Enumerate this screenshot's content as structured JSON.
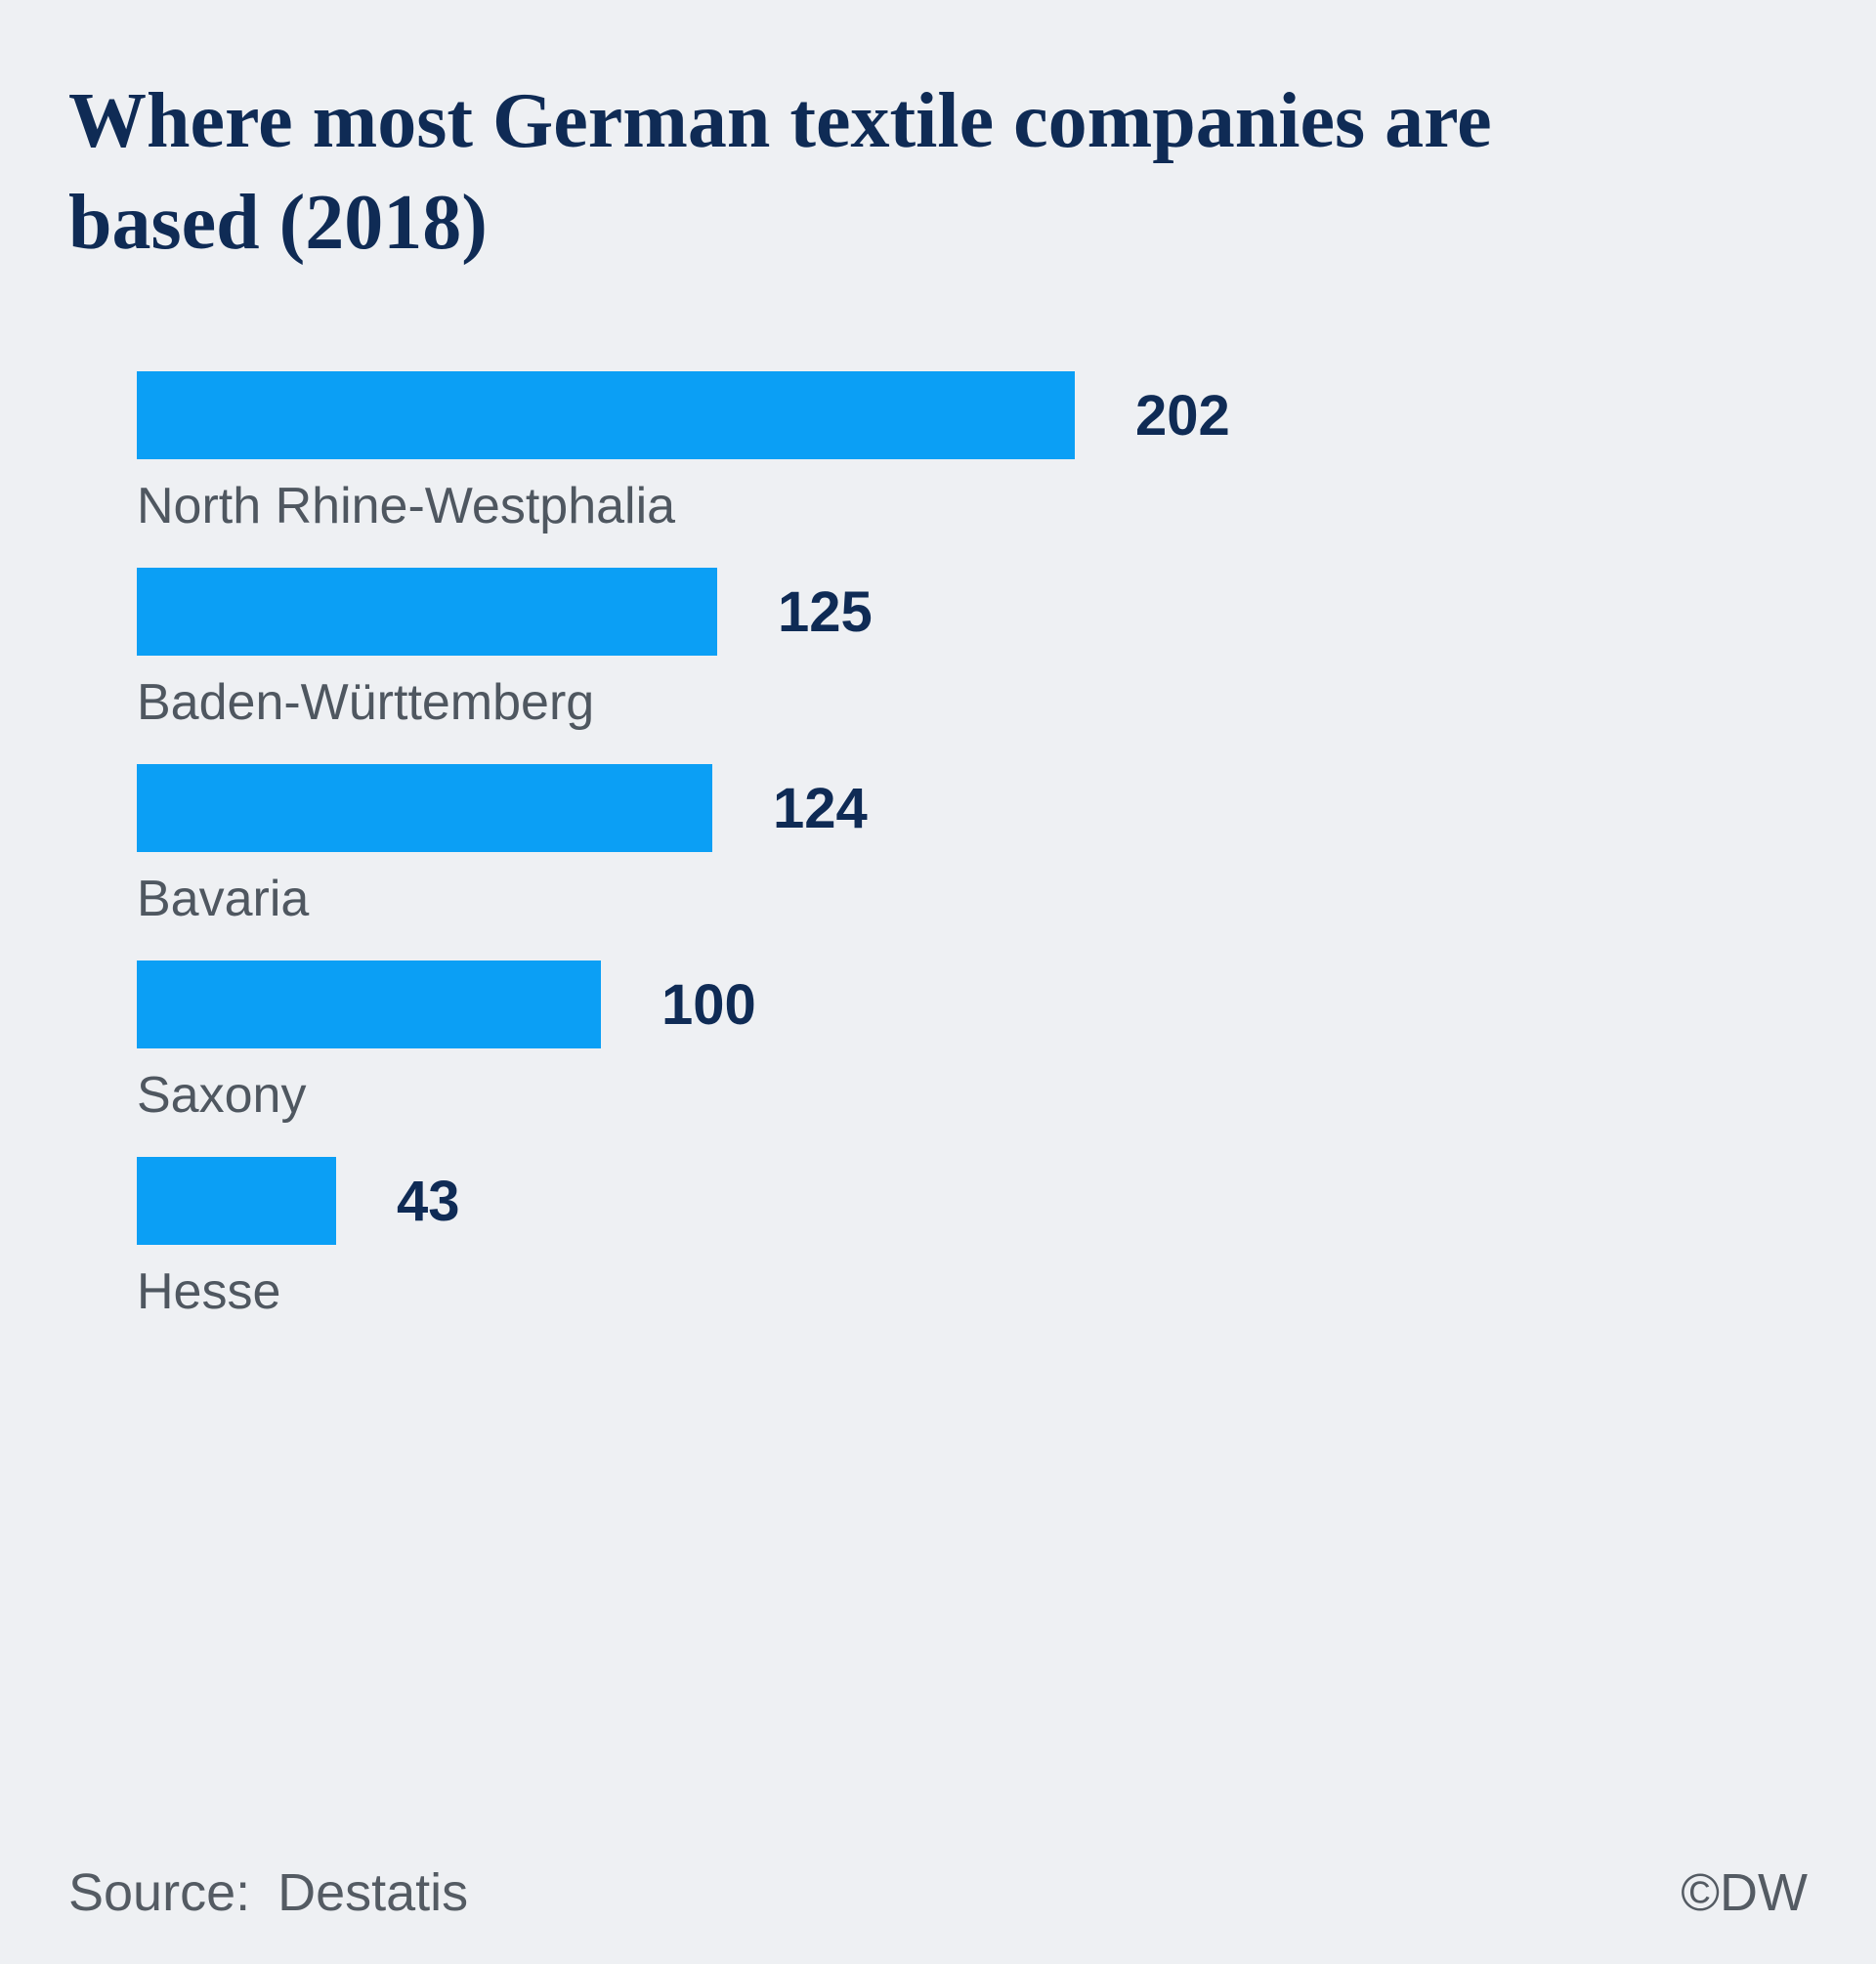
{
  "title": "Where most German textile companies are based (2018)",
  "footer": {
    "source_label": "Source:",
    "source_value": "Destatis",
    "copyright": "©DW"
  },
  "colors": {
    "background": "#eef0f3",
    "bar": "#0b9ff5",
    "title": "#0f2b55",
    "value": "#0f2b55",
    "label": "#4f5760",
    "footer": "#545b63"
  },
  "chart_data": {
    "type": "bar",
    "orientation": "horizontal",
    "title": "Where most German textile companies are based (2018)",
    "categories": [
      "North Rhine-Westphalia",
      "Baden-Württemberg",
      "Bavaria",
      "Saxony",
      "Hesse"
    ],
    "values": [
      202,
      125,
      124,
      100,
      43
    ],
    "xlabel": "",
    "ylabel": "",
    "xlim": [
      0,
      202
    ],
    "grid": false,
    "legend": false,
    "value_labels": "end-of-bar",
    "category_labels": "below-bar"
  }
}
